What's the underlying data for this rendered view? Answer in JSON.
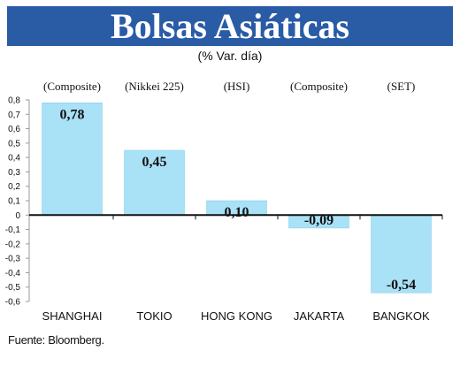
{
  "title": "Bolsas Asiáticas",
  "subtitle": "(% Var. día)",
  "source": "Fuente: Bloomberg.",
  "colors": {
    "banner": "#2a5ca6",
    "bar_fill": "#a9e1f6",
    "bar_stroke": "#7fcbe9",
    "zero_line": "#111111",
    "grid": "#999999"
  },
  "chart_data": {
    "type": "bar",
    "categories": [
      "SHANGHAI",
      "TOKIO",
      "HONG KONG",
      "JAKARTA",
      "BANGKOK"
    ],
    "indices": [
      "(Composite)",
      "(Nikkei 225)",
      "(HSI)",
      "(Composite)",
      "(SET)"
    ],
    "values": [
      0.78,
      0.45,
      0.1,
      -0.09,
      -0.54
    ],
    "value_labels": [
      "0,78",
      "0,45",
      "0,10",
      "-0,09",
      "-0,54"
    ],
    "ylim": [
      -0.6,
      0.8
    ],
    "yticks": [
      0.8,
      0.7,
      0.6,
      0.5,
      0.4,
      0.3,
      0.2,
      0.1,
      0,
      -0.1,
      -0.2,
      -0.3,
      -0.4,
      -0.5,
      -0.6
    ],
    "ytick_labels": [
      "0,8",
      "0,7",
      "0,6",
      "0,5",
      "0,4",
      "0,3",
      "0,2",
      "0,1",
      "0",
      "-0,1",
      "-0,2",
      "-0,3",
      "-0,4",
      "-0,5",
      "-0,6"
    ],
    "grid": false
  }
}
